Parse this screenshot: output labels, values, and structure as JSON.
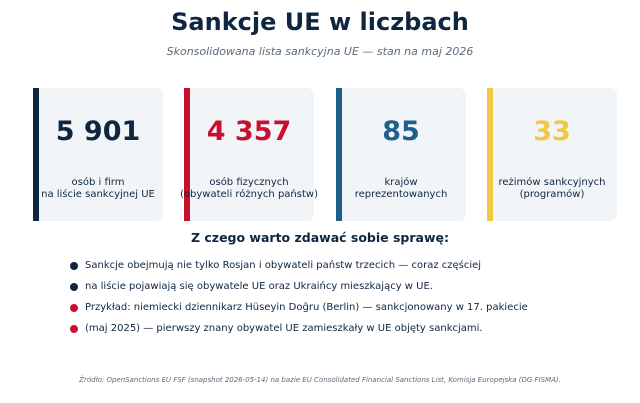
{
  "header": {
    "title": "Sankcje UE w liczbach",
    "subtitle": "Skonsolidowana lista sankcyjna UE — stan na maj 2026"
  },
  "colors": {
    "navy": "#0f2640",
    "red": "#c8102e",
    "blue": "#1f5f8b",
    "yellow": "#f2c744",
    "card_bg": "#f2f5f8",
    "muted": "#5b6b7b"
  },
  "stats": [
    {
      "value": "5 901",
      "label_line1": "osób i firm",
      "label_line2": "na liście sankcyjnej UE",
      "color": "#0f2640"
    },
    {
      "value": "4 357",
      "label_line1": "osób fizycznych",
      "label_line2": "(obywateli różnych państw)",
      "color": "#c8102e"
    },
    {
      "value": "85",
      "label_line1": "krajów",
      "label_line2": "reprezentowanych",
      "color": "#1f5f8b"
    },
    {
      "value": "33",
      "label_line1": "reżimów sankcyjnych",
      "label_line2": "(programów)",
      "color": "#f2c744"
    }
  ],
  "section": {
    "title": "Z czego warto zdawać sobie sprawę:",
    "bullets": [
      {
        "text": "Sankcje obejmują nie tylko Rosjan i obywateli państw trzecich — coraz częściej",
        "color": "#0f2640"
      },
      {
        "text": "na liście pojawiają się obywatele UE oraz Ukraińcy mieszkający w UE.",
        "color": "#0f2640"
      },
      {
        "text": "Przykład: niemiecki dziennikarz Hüseyin Doğru (Berlin) — sankcjonowany w 17. pakiecie",
        "color": "#c8102e"
      },
      {
        "text": "(maj 2025) — pierwszy znany obywatel UE zamieszkały w UE objęty sankcjami.",
        "color": "#c8102e"
      }
    ]
  },
  "footer": {
    "source": "Źródło: OpenSanctions EU FSF (snapshot 2026-05-14) na bazie EU Consolidated Financial Sanctions List, Komisja Europejska (DG FISMA)."
  }
}
